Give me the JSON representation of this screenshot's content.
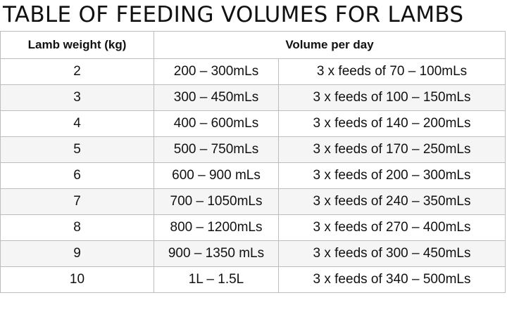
{
  "title": "TABLE OF FEEDING VOLUMES FOR LAMBS",
  "headers": {
    "weight": "Lamb weight (kg)",
    "volume": "Volume per day"
  },
  "rows": [
    {
      "weight": "2",
      "volume": "200 – 300mLs",
      "feeds": "3 x feeds of 70 – 100mLs"
    },
    {
      "weight": "3",
      "volume": "300 – 450mLs",
      "feeds": "3 x feeds of 100 – 150mLs"
    },
    {
      "weight": "4",
      "volume": "400 – 600mLs",
      "feeds": "3 x feeds of 140 – 200mLs"
    },
    {
      "weight": "5",
      "volume": "500 – 750mLs",
      "feeds": "3 x feeds of 170 – 250mLs"
    },
    {
      "weight": "6",
      "volume": "600 – 900 mLs",
      "feeds": "3 x feeds of 200 – 300mLs"
    },
    {
      "weight": "7",
      "volume": "700 – 1050mLs",
      "feeds": "3 x feeds of 240 – 350mLs"
    },
    {
      "weight": "8",
      "volume": "800 – 1200mLs",
      "feeds": "3 x feeds of 270 – 400mLs"
    },
    {
      "weight": "9",
      "volume": "900 – 1350 mLs",
      "feeds": "3 x feeds of 300 – 450mLs"
    },
    {
      "weight": "10",
      "volume": "1L – 1.5L",
      "feeds": "3 x feeds of 340 – 500mLs"
    }
  ]
}
